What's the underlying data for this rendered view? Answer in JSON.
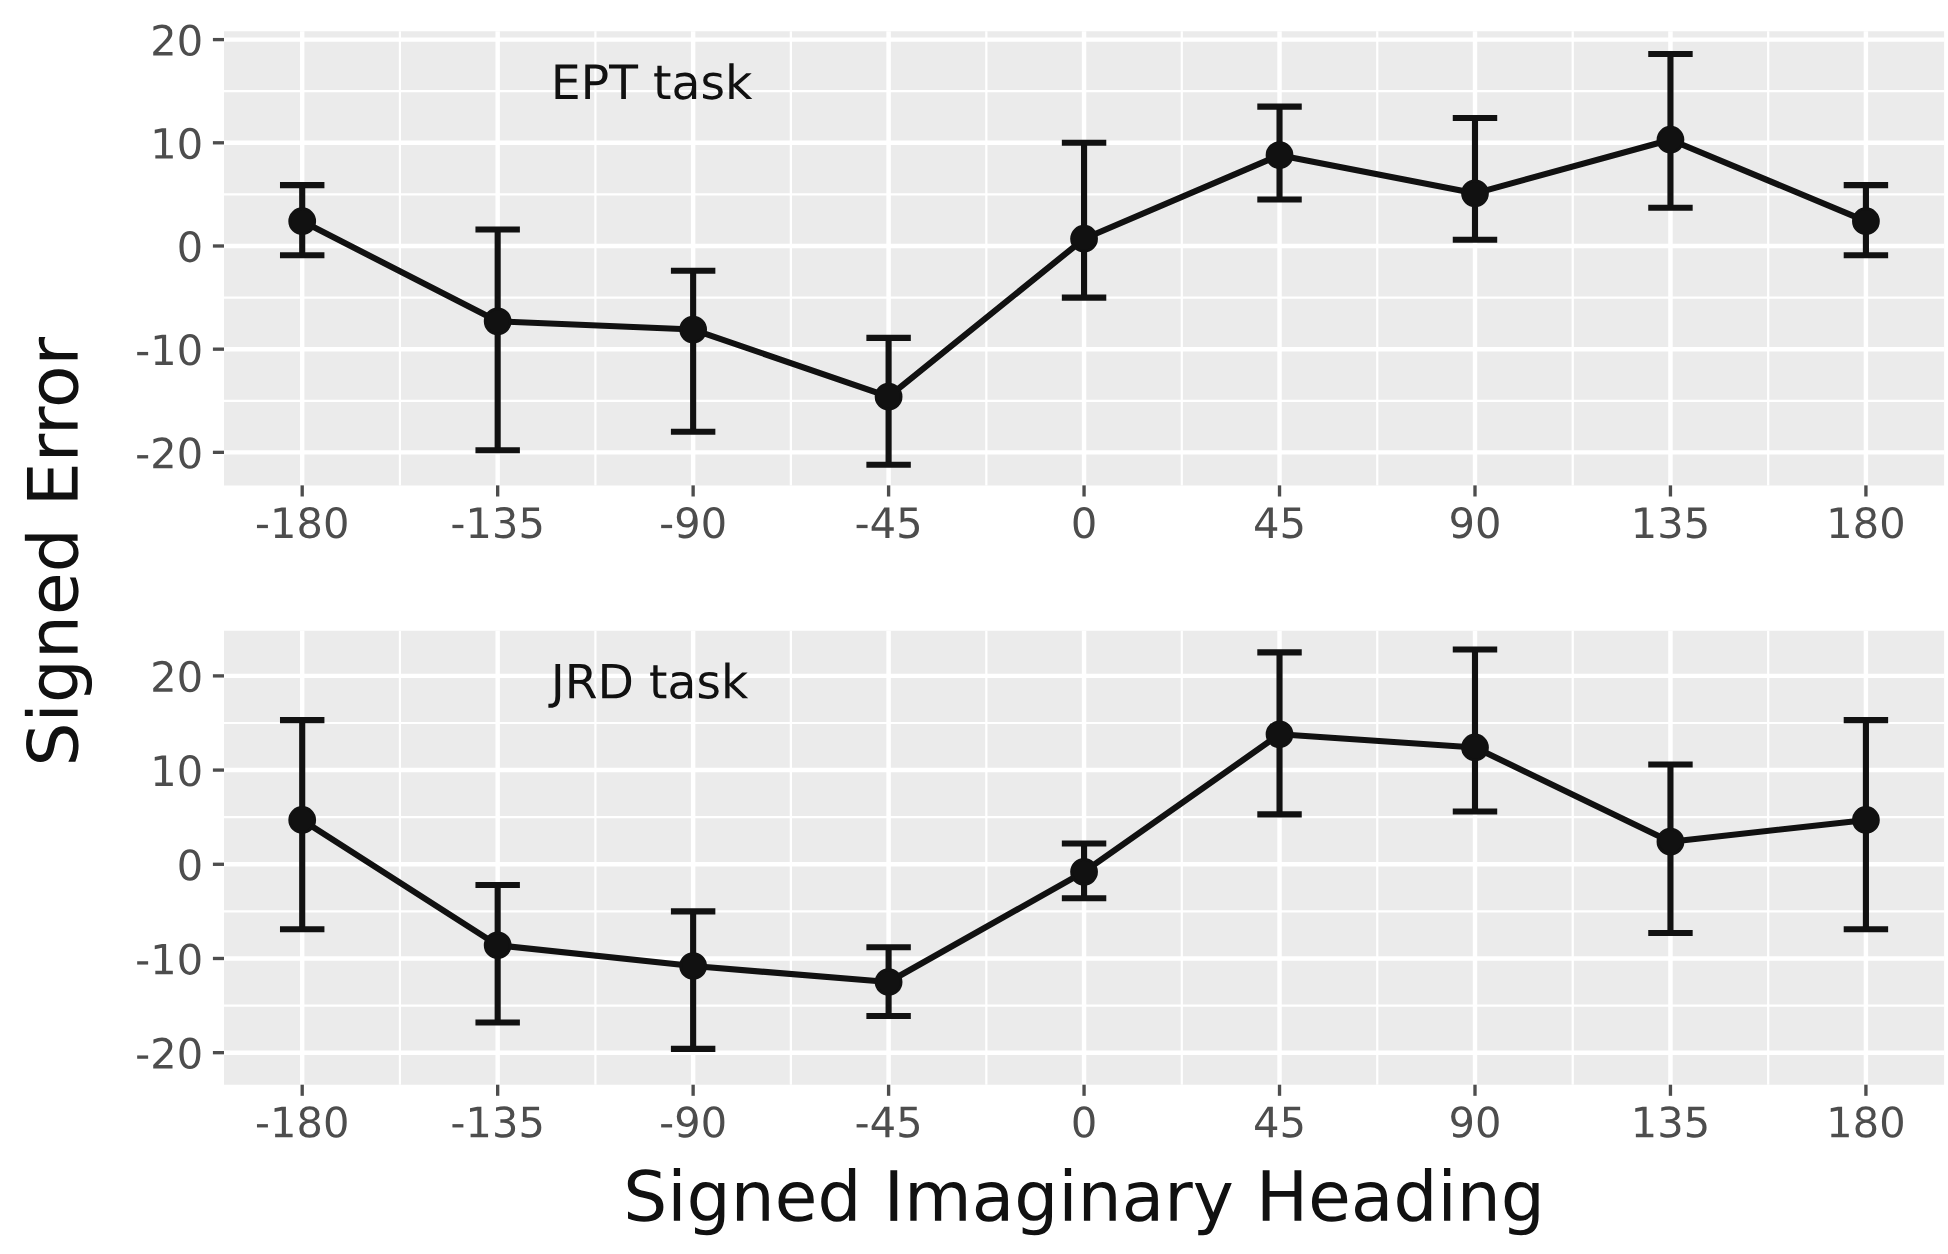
{
  "chart_data": [
    {
      "type": "line",
      "x": [
        -180,
        -135,
        -90,
        -45,
        0,
        45,
        90,
        135,
        180
      ],
      "ylabel": "Signed Error",
      "annotations": [
        "EPT task"
      ],
      "series": [
        {
          "color": "#111111",
          "values": [
            2.4,
            -7.3,
            -8.1,
            -14.6,
            0.7,
            8.8,
            5.1,
            10.3,
            2.4
          ],
          "errors": [
            [
              -0.9,
              5.9
            ],
            [
              -19.8,
              1.6
            ],
            [
              -18.0,
              -2.4
            ],
            [
              -21.2,
              -8.9
            ],
            [
              -5.0,
              10.0
            ],
            [
              4.5,
              13.5
            ],
            [
              0.6,
              12.4
            ],
            [
              3.7,
              18.6
            ],
            [
              -0.9,
              5.9
            ]
          ]
        }
      ],
      "xlim": [
        -198,
        198
      ],
      "xticks": [
        -180,
        -135,
        -90,
        -45,
        0,
        45,
        90,
        135,
        180
      ],
      "ylim": [
        -23.2,
        20.8
      ],
      "yticks": [
        -20,
        -10,
        0,
        10,
        20
      ],
      "grid": true,
      "marker": "circle",
      "line_style": "solid"
    },
    {
      "type": "line",
      "x": [
        -180,
        -135,
        -90,
        -45,
        0,
        45,
        90,
        135,
        180
      ],
      "xlabel": "Signed Imaginary Heading",
      "annotations": [
        "JRD task"
      ],
      "series": [
        {
          "color": "#111111",
          "values": [
            4.7,
            -8.6,
            -10.8,
            -12.5,
            -0.8,
            13.8,
            12.4,
            2.4,
            4.7
          ],
          "errors": [
            [
              -6.9,
              15.3
            ],
            [
              -16.8,
              -2.2
            ],
            [
              -19.6,
              -5.0
            ],
            [
              -16.1,
              -8.8
            ],
            [
              -3.6,
              2.2
            ],
            [
              5.3,
              22.5
            ],
            [
              5.6,
              22.8
            ],
            [
              -7.3,
              10.6
            ],
            [
              -6.9,
              15.3
            ]
          ]
        }
      ],
      "xlim": [
        -198,
        198
      ],
      "xticks": [
        -180,
        -135,
        -90,
        -45,
        0,
        45,
        90,
        135,
        180
      ],
      "ylim": [
        -23.4,
        24.8
      ],
      "yticks": [
        -20,
        -10,
        0,
        10,
        20
      ],
      "grid": true,
      "marker": "circle",
      "line_style": "solid"
    }
  ]
}
